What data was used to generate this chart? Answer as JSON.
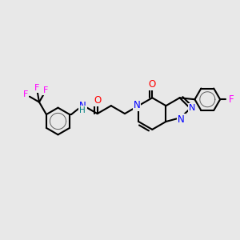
{
  "background_color": "#e8e8e8",
  "bond_color": "#000000",
  "bond_width": 1.5,
  "colors": {
    "N": "#0000ff",
    "O": "#ff0000",
    "F": "#ff00ff",
    "H": "#008080",
    "C": "#000000"
  },
  "figsize": [
    3.0,
    3.0
  ],
  "dpi": 100
}
